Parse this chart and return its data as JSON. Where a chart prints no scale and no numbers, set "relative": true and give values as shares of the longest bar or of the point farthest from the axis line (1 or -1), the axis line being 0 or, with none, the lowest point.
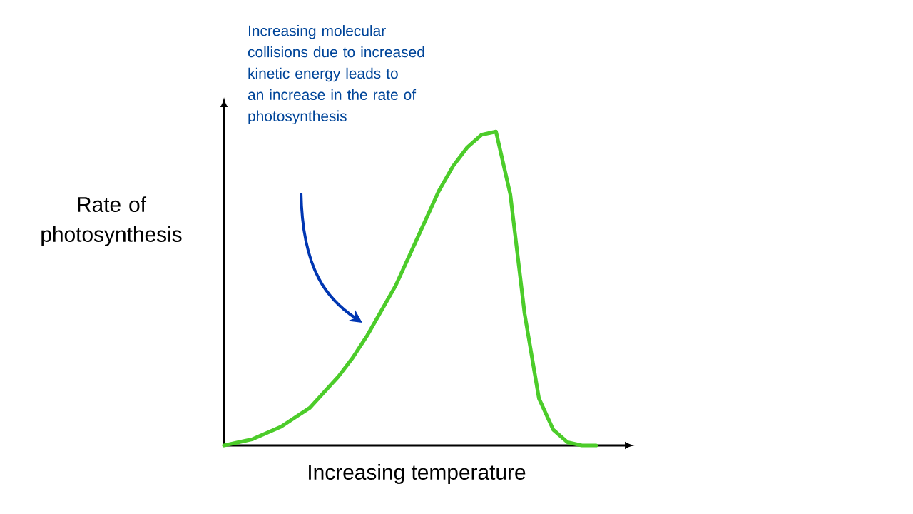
{
  "chart_data": {
    "type": "line",
    "relative": true,
    "xlabel": "Increasing temperature",
    "ylabel": "Rate of photosynthesis",
    "annotations": [
      "Increasing molecular collisions due to increased kinetic energy leads to an increase in the rate of photosynthesis"
    ],
    "categories": [
      null,
      null,
      null,
      null,
      null,
      null,
      null,
      null,
      null,
      null,
      null,
      null,
      null,
      null,
      null,
      null,
      null,
      null,
      null,
      null,
      null,
      null,
      null,
      null,
      null,
      null,
      null
    ],
    "series": [
      {
        "color": "#4ccc2a",
        "values": [
          0,
          0.01,
          0.02,
          0.04,
          0.06,
          0.09,
          0.12,
          0.17,
          0.22,
          0.28,
          0.35,
          0.43,
          0.51,
          0.61,
          0.71,
          0.81,
          0.89,
          0.95,
          0.99,
          1.0,
          0.8,
          0.42,
          0.15,
          0.05,
          0.01,
          0,
          0
        ]
      }
    ]
  }
}
